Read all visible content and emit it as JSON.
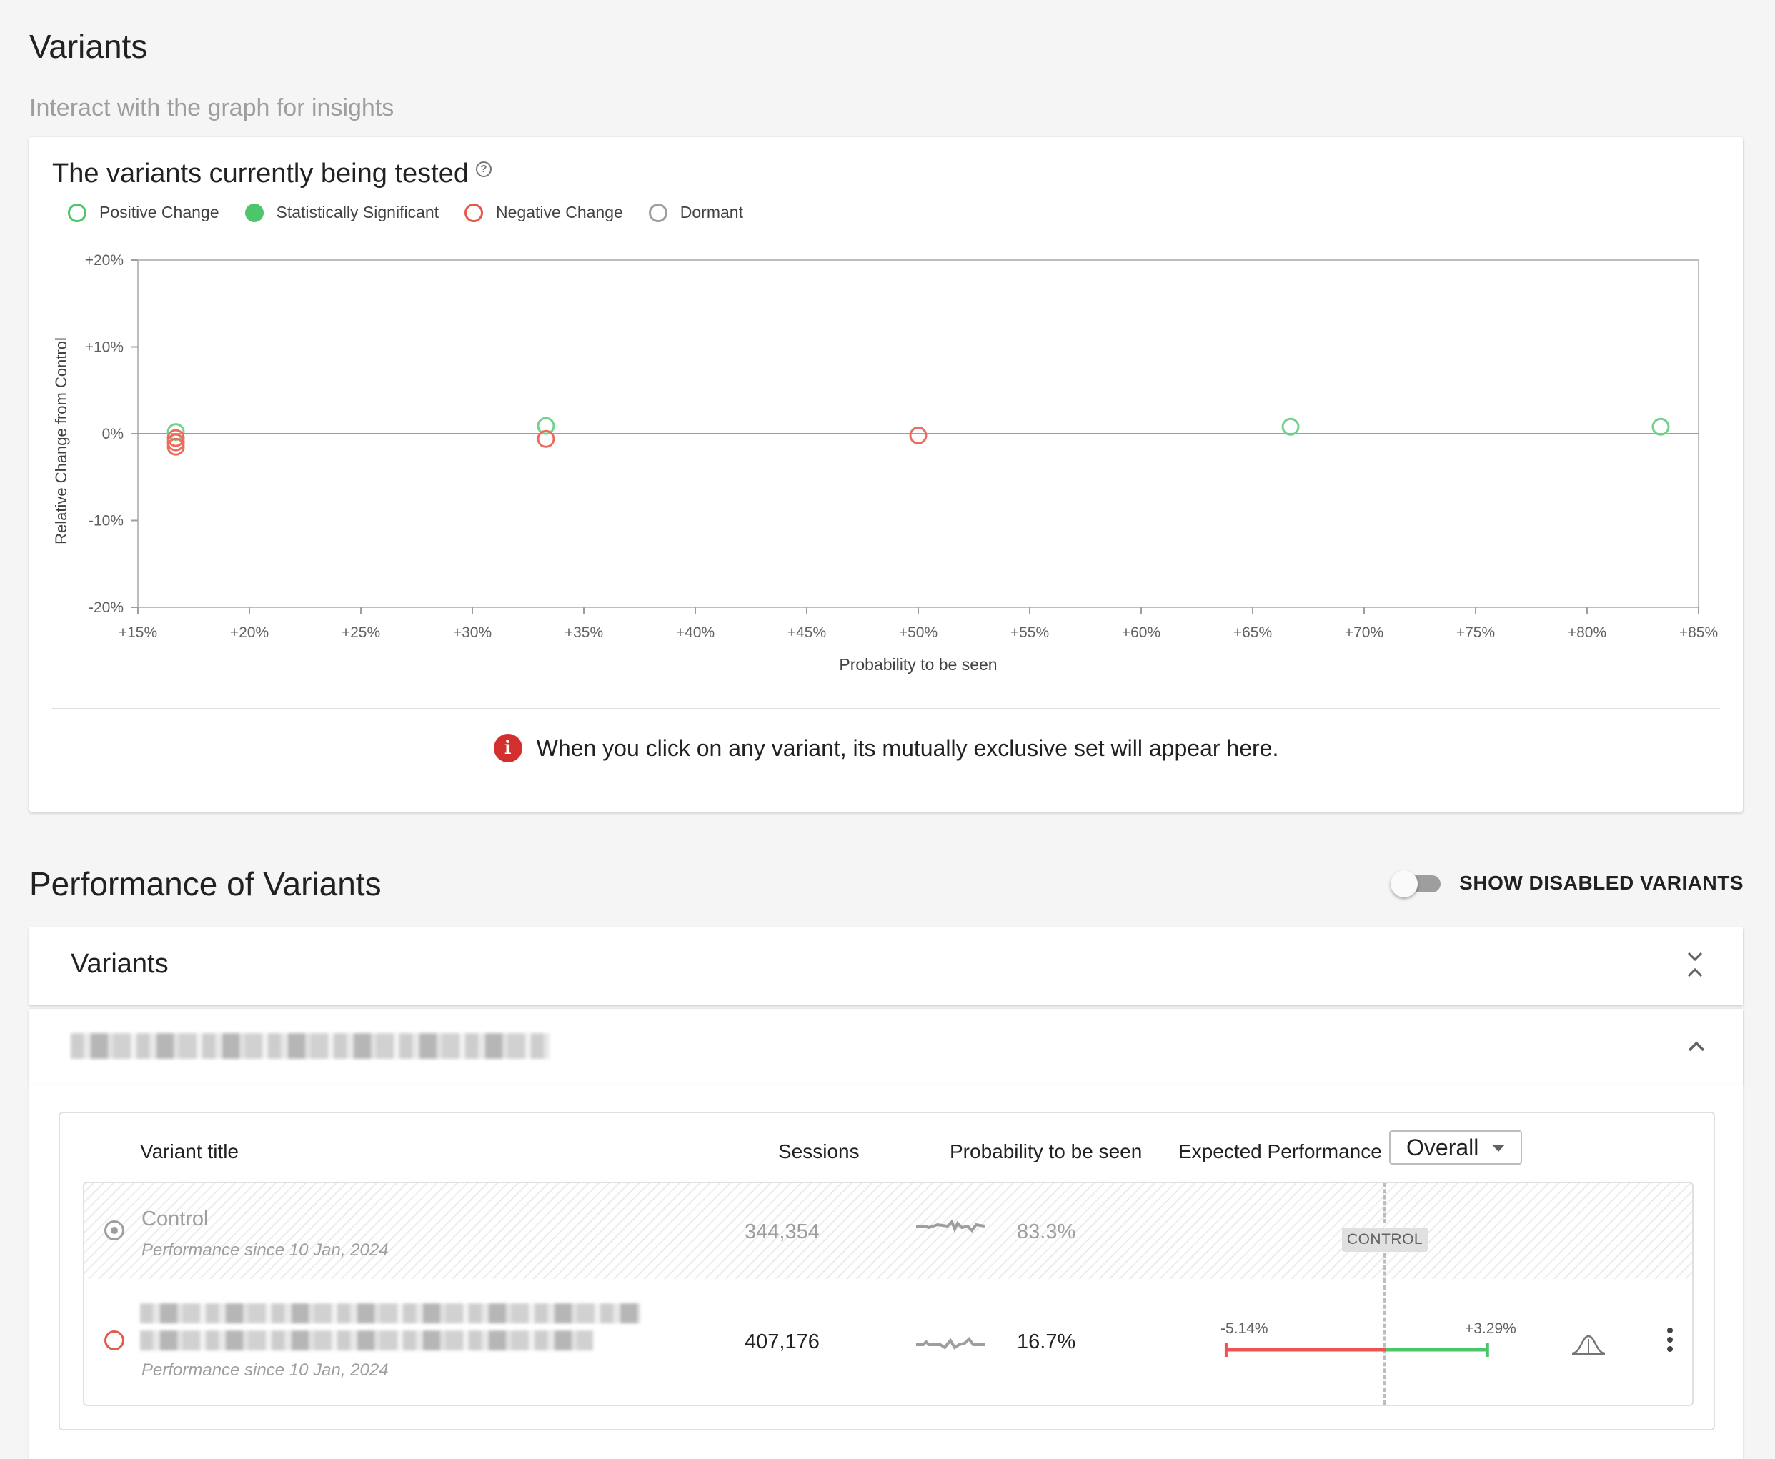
{
  "page": {
    "title": "Variants",
    "subtitle": "Interact with the graph for insights"
  },
  "chart_card": {
    "title": "The variants currently being tested",
    "help_icon": "help-circle-icon",
    "legend": [
      {
        "label": "Positive Change",
        "style": "ring",
        "color": "#4caf50"
      },
      {
        "label": "Statistically Significant",
        "style": "filled",
        "color": "#4cc56b"
      },
      {
        "label": "Negative Change",
        "style": "ring",
        "color": "#e8584a"
      },
      {
        "label": "Dormant",
        "style": "ring",
        "color": "#9e9e9e"
      }
    ],
    "info_icon": "alert-circle-icon",
    "info_text": "When you click on any variant, its mutually exclusive set will appear here."
  },
  "chart_data": {
    "type": "scatter",
    "xlabel": "Probability to be seen",
    "ylabel": "Relative Change from Control",
    "xlim": [
      15,
      85
    ],
    "ylim": [
      -20,
      20
    ],
    "x_ticks": [
      "+15%",
      "+20%",
      "+25%",
      "+30%",
      "+35%",
      "+40%",
      "+45%",
      "+50%",
      "+55%",
      "+60%",
      "+65%",
      "+70%",
      "+75%",
      "+80%",
      "+85%"
    ],
    "y_ticks": [
      "+20%",
      "+10%",
      "0%",
      "-10%",
      "-20%"
    ],
    "points": [
      {
        "x": 16.7,
        "y": 0.2,
        "category": "Positive Change"
      },
      {
        "x": 16.7,
        "y": -0.5,
        "category": "Negative Change"
      },
      {
        "x": 16.7,
        "y": -1.0,
        "category": "Negative Change"
      },
      {
        "x": 16.7,
        "y": -1.5,
        "category": "Negative Change"
      },
      {
        "x": 33.3,
        "y": 0.9,
        "category": "Positive Change"
      },
      {
        "x": 33.3,
        "y": -0.6,
        "category": "Negative Change"
      },
      {
        "x": 50.0,
        "y": -0.2,
        "category": "Negative Change"
      },
      {
        "x": 66.7,
        "y": 0.8,
        "category": "Positive Change"
      },
      {
        "x": 83.3,
        "y": 0.8,
        "category": "Positive Change"
      }
    ],
    "grid": false,
    "zero_line": true
  },
  "performance": {
    "title": "Performance of Variants",
    "toggle_label": "SHOW DISABLED VARIANTS",
    "toggle_on": false,
    "section_title": "Variants",
    "collapse_icon": "collapse-all-icon",
    "group_expand_icon": "chevron-up-icon",
    "table": {
      "headers": {
        "title": "Variant title",
        "sessions": "Sessions",
        "probability": "Probability to be seen",
        "expected": "Expected Performance"
      },
      "select_value": "Overall",
      "control_badge": "CONTROL",
      "rows": [
        {
          "title": "Control",
          "since": "Performance since 10 Jan, 2024",
          "sessions": "344,354",
          "probability": "83.3%",
          "kind": "control"
        },
        {
          "since": "Performance since 10 Jan, 2024",
          "sessions": "407,176",
          "probability": "16.7%",
          "ci_low": "-5.14%",
          "ci_high": "+3.29%",
          "ci_low_value": -5.14,
          "ci_high_value": 3.29,
          "kind": "variant",
          "distribution_icon": "bell-curve-icon",
          "menu_icon": "more-vertical-icon"
        }
      ]
    }
  }
}
